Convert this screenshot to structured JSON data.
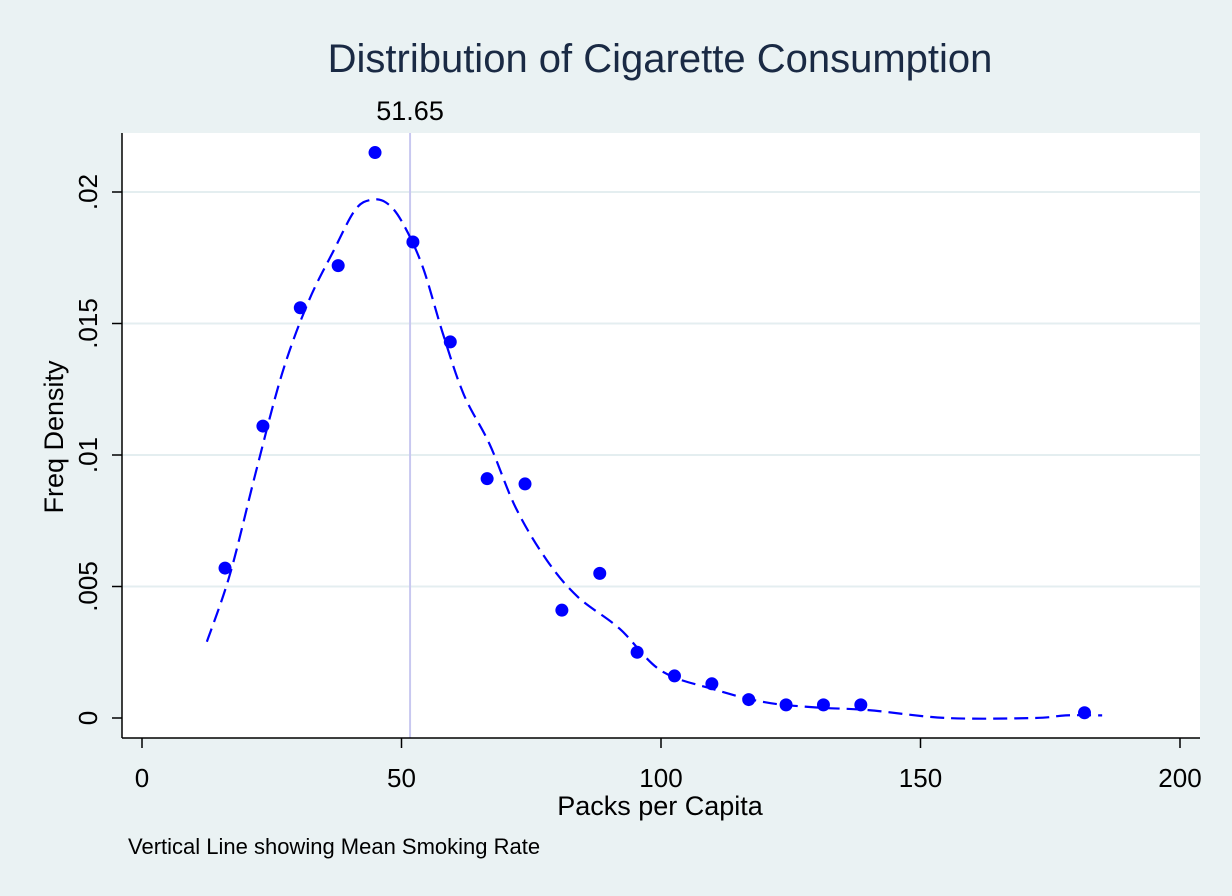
{
  "chart_data": {
    "type": "scatter",
    "title": "Distribution of Cigarette Consumption",
    "xlabel": "Packs per Capita",
    "ylabel": "Freq Density",
    "note": "Vertical Line showing Mean Smoking Rate",
    "xlim": [
      0,
      200
    ],
    "ylim": [
      0,
      0.0215
    ],
    "x_ticks": [
      0,
      50,
      100,
      150,
      200
    ],
    "x_tick_labels": [
      "0",
      "50",
      "100",
      "150",
      "200"
    ],
    "y_ticks": [
      0,
      0.005,
      0.01,
      0.015,
      0.02
    ],
    "y_tick_labels": [
      "0",
      ".005",
      ".01",
      ".015",
      ".02"
    ],
    "grid": true,
    "mean_line": {
      "x": 51.65,
      "label": "51.65",
      "color": "#c8c8f0"
    },
    "series": [
      {
        "type": "scatter",
        "color": "#0000ff",
        "points": [
          {
            "x": 16,
            "y": 0.0057
          },
          {
            "x": 23.3,
            "y": 0.0111
          },
          {
            "x": 30.5,
            "y": 0.0156
          },
          {
            "x": 37.8,
            "y": 0.0172
          },
          {
            "x": 44.9,
            "y": 0.0215
          },
          {
            "x": 52.2,
            "y": 0.0181
          },
          {
            "x": 59.4,
            "y": 0.0143
          },
          {
            "x": 66.5,
            "y": 0.0091
          },
          {
            "x": 73.8,
            "y": 0.0089
          },
          {
            "x": 80.9,
            "y": 0.0041
          },
          {
            "x": 88.2,
            "y": 0.0055
          },
          {
            "x": 95.4,
            "y": 0.0025
          },
          {
            "x": 102.6,
            "y": 0.0016
          },
          {
            "x": 109.8,
            "y": 0.0013
          },
          {
            "x": 116.9,
            "y": 0.0007
          },
          {
            "x": 124.1,
            "y": 0.0005
          },
          {
            "x": 131.3,
            "y": 0.0005
          },
          {
            "x": 138.5,
            "y": 0.0005
          },
          {
            "x": 181.6,
            "y": 0.0002
          }
        ]
      },
      {
        "type": "line",
        "style": "dashed",
        "color": "#0000ff",
        "points": [
          {
            "x": 12.5,
            "y": 0.0029
          },
          {
            "x": 17,
            "y": 0.0055
          },
          {
            "x": 22,
            "y": 0.0094
          },
          {
            "x": 27,
            "y": 0.0131
          },
          {
            "x": 32,
            "y": 0.0158
          },
          {
            "x": 37,
            "y": 0.0178
          },
          {
            "x": 41,
            "y": 0.0193
          },
          {
            "x": 44,
            "y": 0.0197
          },
          {
            "x": 47,
            "y": 0.0196
          },
          {
            "x": 50,
            "y": 0.0189
          },
          {
            "x": 54,
            "y": 0.0172
          },
          {
            "x": 58,
            "y": 0.0146
          },
          {
            "x": 62,
            "y": 0.0123
          },
          {
            "x": 67,
            "y": 0.0104
          },
          {
            "x": 72,
            "y": 0.008
          },
          {
            "x": 78,
            "y": 0.006
          },
          {
            "x": 84,
            "y": 0.0046
          },
          {
            "x": 92,
            "y": 0.0034
          },
          {
            "x": 100,
            "y": 0.0018
          },
          {
            "x": 110,
            "y": 0.0011
          },
          {
            "x": 120,
            "y": 0.0006
          },
          {
            "x": 130,
            "y": 0.0004
          },
          {
            "x": 140,
            "y": 0.0003
          },
          {
            "x": 155,
            "y": 0.0
          },
          {
            "x": 172,
            "y": 0.0
          },
          {
            "x": 178,
            "y": 0.0001
          },
          {
            "x": 185,
            "y": 0.0001
          }
        ]
      }
    ]
  }
}
